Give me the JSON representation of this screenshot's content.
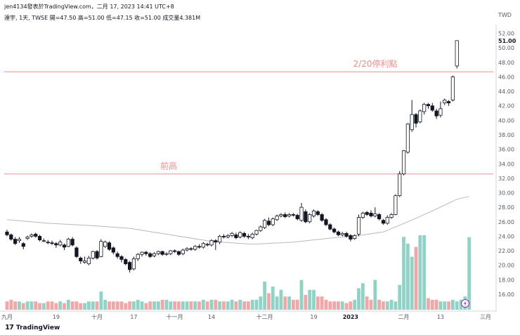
{
  "header": {
    "credit": "jen4134發表於TradingView.com，二月 17, 2023 14:41 UTC+8",
    "legend": "達宇, 1天, TWSE  開=47.50  高=51.00  低=47.15  收=51.00  成交量4.381M",
    "currency": "TWD"
  },
  "brand": {
    "logo": "17",
    "name": "TradingView"
  },
  "chart_data": {
    "type": "candlestick",
    "ylim": [
      16,
      54
    ],
    "y_ticks": [
      "52.00",
      "50.00",
      "48.00",
      "46.00",
      "44.00",
      "42.00",
      "40.00",
      "38.00",
      "36.00",
      "34.00",
      "32.00",
      "30.00",
      "28.00",
      "26.00",
      "24.00",
      "22.00",
      "20.00",
      "18.00",
      "16.00"
    ],
    "last_price_label": "51.00",
    "x_ticks": [
      {
        "label": "九月",
        "i": 0
      },
      {
        "label": "19",
        "i": 12
      },
      {
        "label": "十月",
        "i": 22
      },
      {
        "label": "17",
        "i": 31
      },
      {
        "label": "十一月",
        "i": 41
      },
      {
        "label": "14",
        "i": 50
      },
      {
        "label": "十二月",
        "i": 63
      },
      {
        "label": "19",
        "i": 75
      },
      {
        "label": "2023",
        "i": 84
      },
      {
        "label": "二月",
        "i": 97
      },
      {
        "label": "13",
        "i": 106
      },
      {
        "label": "三月",
        "i": 117
      }
    ],
    "bold_x_ticks": [
      "2023"
    ],
    "hlines": [
      {
        "value": 46.7,
        "label": "2/20停利點"
      },
      {
        "value": 32.6,
        "label": "前高"
      }
    ],
    "candles": [
      [
        24.6,
        24.2,
        24.9,
        24.0
      ],
      [
        24.2,
        23.6,
        24.4,
        23.4
      ],
      [
        23.6,
        23.0,
        23.9,
        22.8
      ],
      [
        23.4,
        23.6,
        23.9,
        23.1
      ],
      [
        23.0,
        22.6,
        23.2,
        22.2
      ],
      [
        23.7,
        23.9,
        24.1,
        23.5
      ],
      [
        24.0,
        24.2,
        24.4,
        23.8
      ],
      [
        24.3,
        24.0,
        24.5,
        23.8
      ],
      [
        24.0,
        23.5,
        24.2,
        23.3
      ],
      [
        23.4,
        23.4,
        23.7,
        23.2
      ],
      [
        23.2,
        23.1,
        23.5,
        22.9
      ],
      [
        23.1,
        23.0,
        23.4,
        22.8
      ],
      [
        23.0,
        22.8,
        23.2,
        22.4
      ],
      [
        22.8,
        23.2,
        23.5,
        22.6
      ],
      [
        22.8,
        22.5,
        23.0,
        22.1
      ],
      [
        22.6,
        23.6,
        23.8,
        22.5
      ],
      [
        23.6,
        22.8,
        23.9,
        22.6
      ],
      [
        22.4,
        21.2,
        22.6,
        21.0
      ],
      [
        21.0,
        20.6,
        21.2,
        20.2
      ],
      [
        20.4,
        20.6,
        21.2,
        20.2
      ],
      [
        20.2,
        21.0,
        21.3,
        20.0
      ],
      [
        21.0,
        21.9,
        22.0,
        20.8
      ],
      [
        21.9,
        21.0,
        22.1,
        20.8
      ],
      [
        21.2,
        23.3,
        23.6,
        21.1
      ],
      [
        22.6,
        23.2,
        23.4,
        22.4
      ],
      [
        23.1,
        22.2,
        23.3,
        22.0
      ],
      [
        22.4,
        21.8,
        22.6,
        21.5
      ],
      [
        21.6,
        21.2,
        21.9,
        20.9
      ],
      [
        21.2,
        20.8,
        21.4,
        20.4
      ],
      [
        20.8,
        20.2,
        21.0,
        20.0
      ],
      [
        20.4,
        19.4,
        20.6,
        19.0
      ],
      [
        19.5,
        20.9,
        21.2,
        19.3
      ],
      [
        20.9,
        21.5,
        21.7,
        20.6
      ],
      [
        21.5,
        21.8,
        21.9,
        21.2
      ],
      [
        21.8,
        21.6,
        22.0,
        21.3
      ],
      [
        21.6,
        21.2,
        21.8,
        21.0
      ],
      [
        21.3,
        21.6,
        21.8,
        21.1
      ],
      [
        21.6,
        21.9,
        22.0,
        21.4
      ],
      [
        21.9,
        21.5,
        22.0,
        21.3
      ],
      [
        21.5,
        21.6,
        21.8,
        21.3
      ],
      [
        21.6,
        22.0,
        22.1,
        21.4
      ],
      [
        22.0,
        21.9,
        22.2,
        21.7
      ],
      [
        21.9,
        21.5,
        22.0,
        21.3
      ],
      [
        21.6,
        22.1,
        22.3,
        21.4
      ],
      [
        22.1,
        22.3,
        22.5,
        21.9
      ],
      [
        22.3,
        22.2,
        22.5,
        22.0
      ],
      [
        22.2,
        22.6,
        22.8,
        22.0
      ],
      [
        22.6,
        22.5,
        22.9,
        22.3
      ],
      [
        22.5,
        23.0,
        23.2,
        22.3
      ],
      [
        22.9,
        22.8,
        23.1,
        22.6
      ],
      [
        22.8,
        23.4,
        23.6,
        22.6
      ],
      [
        23.4,
        23.2,
        23.6,
        22.1
      ],
      [
        23.2,
        24.0,
        24.2,
        22.9
      ],
      [
        24.0,
        23.9,
        24.3,
        23.7
      ],
      [
        23.9,
        24.1,
        24.3,
        23.7
      ],
      [
        24.1,
        24.4,
        24.6,
        23.9
      ],
      [
        24.2,
        23.8,
        24.5,
        23.6
      ],
      [
        23.9,
        24.5,
        24.7,
        23.7
      ],
      [
        24.4,
        24.0,
        24.6,
        23.8
      ],
      [
        24.0,
        23.9,
        24.3,
        23.6
      ],
      [
        23.8,
        24.3,
        24.5,
        23.6
      ],
      [
        24.3,
        24.8,
        24.9,
        24.1
      ],
      [
        24.8,
        25.3,
        25.5,
        24.6
      ],
      [
        25.2,
        26.2,
        26.4,
        25.0
      ],
      [
        26.1,
        25.6,
        26.6,
        25.4
      ],
      [
        25.6,
        26.4,
        26.6,
        25.4
      ],
      [
        26.3,
        26.8,
        27.0,
        26.1
      ],
      [
        26.8,
        27.0,
        27.2,
        26.6
      ],
      [
        27.0,
        26.7,
        27.3,
        26.5
      ],
      [
        26.8,
        27.0,
        27.2,
        26.6
      ],
      [
        27.0,
        26.9,
        27.2,
        26.7
      ],
      [
        26.9,
        26.4,
        27.1,
        26.2
      ],
      [
        26.2,
        28.0,
        28.6,
        26.0
      ],
      [
        27.4,
        26.0,
        27.7,
        25.8
      ],
      [
        26.0,
        27.0,
        27.2,
        25.8
      ],
      [
        26.8,
        27.5,
        27.7,
        26.6
      ],
      [
        27.4,
        27.0,
        27.6,
        26.8
      ],
      [
        27.0,
        26.2,
        27.2,
        26.0
      ],
      [
        26.3,
        25.6,
        26.5,
        25.4
      ],
      [
        25.6,
        25.0,
        25.8,
        24.8
      ],
      [
        25.0,
        24.6,
        25.2,
        24.4
      ],
      [
        24.6,
        24.2,
        24.8,
        24.0
      ],
      [
        24.2,
        24.4,
        24.6,
        24.0
      ],
      [
        24.4,
        24.0,
        24.6,
        23.8
      ],
      [
        24.1,
        23.6,
        24.3,
        23.3
      ],
      [
        23.7,
        24.1,
        24.3,
        23.5
      ],
      [
        24.3,
        26.6,
        27.0,
        24.0
      ],
      [
        26.6,
        27.2,
        27.4,
        26.4
      ],
      [
        27.3,
        27.0,
        27.5,
        26.8
      ],
      [
        27.2,
        26.8,
        27.6,
        26.6
      ],
      [
        26.8,
        27.1,
        28.0,
        26.6
      ],
      [
        27.0,
        26.4,
        27.2,
        26.2
      ],
      [
        26.2,
        25.8,
        26.4,
        25.6
      ],
      [
        25.8,
        26.6,
        26.9,
        25.6
      ],
      [
        26.6,
        27.0,
        27.2,
        26.4
      ],
      [
        27.0,
        29.6,
        29.8,
        26.9
      ],
      [
        29.6,
        32.6,
        33.0,
        29.4
      ],
      [
        32.6,
        35.8,
        35.9,
        32.4
      ],
      [
        35.6,
        39.5,
        39.6,
        35.4
      ],
      [
        38.7,
        40.8,
        42.8,
        38.4
      ],
      [
        40.8,
        39.6,
        41.0,
        39.0
      ],
      [
        39.8,
        41.3,
        41.5,
        39.6
      ],
      [
        41.2,
        42.2,
        42.4,
        40.8
      ],
      [
        42.2,
        42.0,
        42.4,
        41.6
      ],
      [
        42.0,
        41.4,
        42.4,
        41.2
      ],
      [
        41.3,
        40.6,
        41.6,
        40.2
      ],
      [
        40.7,
        41.6,
        42.6,
        40.4
      ],
      [
        42.4,
        42.8,
        43.0,
        42.1
      ],
      [
        42.6,
        42.4,
        42.8,
        42.0
      ],
      [
        42.8,
        46.0,
        46.2,
        42.6
      ],
      [
        47.5,
        51.0,
        51.0,
        47.15
      ]
    ],
    "volumes": [
      0.5,
      0.6,
      0.5,
      0.5,
      0.4,
      0.5,
      0.5,
      0.5,
      0.4,
      0.4,
      0.5,
      0.5,
      0.4,
      0.5,
      0.4,
      0.6,
      0.5,
      0.5,
      0.4,
      0.4,
      0.5,
      0.5,
      0.5,
      1.1,
      0.6,
      0.5,
      0.5,
      0.5,
      0.5,
      0.4,
      0.5,
      0.5,
      0.6,
      0.5,
      0.4,
      0.5,
      0.5,
      0.5,
      0.6,
      0.6,
      0.5,
      0.5,
      0.5,
      0.5,
      0.5,
      0.5,
      0.5,
      0.5,
      0.6,
      0.5,
      0.6,
      0.6,
      0.5,
      0.5,
      0.5,
      0.6,
      0.5,
      0.6,
      0.5,
      0.5,
      0.6,
      0.6,
      0.8,
      1.7,
      1.0,
      1.4,
      0.8,
      1.2,
      0.8,
      0.8,
      0.6,
      0.6,
      1.8,
      0.9,
      1.2,
      1.2,
      0.8,
      0.8,
      0.6,
      0.5,
      0.5,
      0.5,
      0.5,
      0.4,
      0.5,
      0.6,
      1.3,
      1.6,
      0.8,
      0.6,
      1.8,
      0.6,
      0.5,
      0.5,
      0.6,
      0.5,
      1.5,
      4.4,
      4.0,
      3.2,
      3.8,
      4.5,
      4.5,
      0.7,
      0.6,
      0.6,
      0.5,
      0.5,
      0.5,
      0.6,
      0.5,
      0.6,
      0.8,
      4.381
    ],
    "ma": [
      {
        "i": 0,
        "v": 26.3
      },
      {
        "i": 10,
        "v": 25.8
      },
      {
        "i": 20,
        "v": 25.5
      },
      {
        "i": 30,
        "v": 25.1
      },
      {
        "i": 40,
        "v": 24.2
      },
      {
        "i": 50,
        "v": 23.3
      },
      {
        "i": 60,
        "v": 22.9
      },
      {
        "i": 70,
        "v": 23.2
      },
      {
        "i": 80,
        "v": 23.8
      },
      {
        "i": 86,
        "v": 24.1
      },
      {
        "i": 92,
        "v": 24.6
      },
      {
        "i": 98,
        "v": 26.0
      },
      {
        "i": 104,
        "v": 27.5
      },
      {
        "i": 110,
        "v": 29.1
      },
      {
        "i": 113,
        "v": 29.5
      }
    ],
    "colors": {
      "down_candle": "#131722",
      "up_candle": "#ffffff",
      "candle_border": "#131722",
      "vol_up": "#8fd3c6",
      "vol_down": "#f4a6a6",
      "ma_line": "#b8b8b8",
      "hline": "#f28b8b"
    }
  }
}
